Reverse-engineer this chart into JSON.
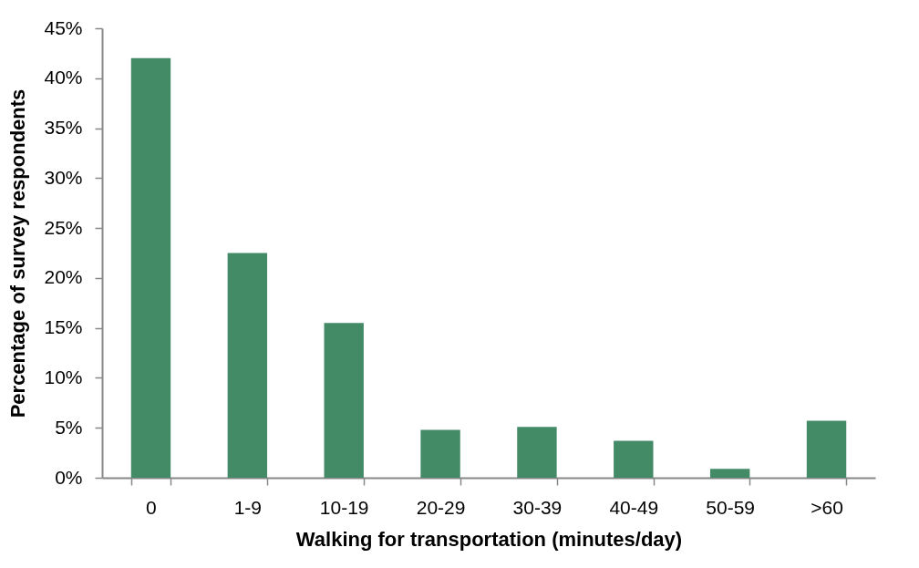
{
  "chart_data": {
    "type": "bar",
    "xlabel": "Walking for transportation (minutes/day)",
    "ylabel": "Percentage of survey respondents",
    "categories": [
      "0",
      "1-9",
      "10-19",
      "20-29",
      "30-39",
      "40-49",
      "50-59",
      ">60"
    ],
    "values": [
      42.0,
      22.5,
      15.5,
      4.8,
      5.1,
      3.7,
      0.9,
      5.7
    ],
    "color": "#438a66",
    "ylim": [
      0,
      45
    ],
    "yticks": [
      {
        "value": 0,
        "label": "0%"
      },
      {
        "value": 5,
        "label": "5%"
      },
      {
        "value": 10,
        "label": "10%"
      },
      {
        "value": 15,
        "label": "15%"
      },
      {
        "value": 20,
        "label": "20%"
      },
      {
        "value": 25,
        "label": "25%"
      },
      {
        "value": 30,
        "label": "30%"
      },
      {
        "value": 35,
        "label": "35%"
      },
      {
        "value": 40,
        "label": "40%"
      },
      {
        "value": 45,
        "label": "45%"
      }
    ],
    "grid": false
  }
}
